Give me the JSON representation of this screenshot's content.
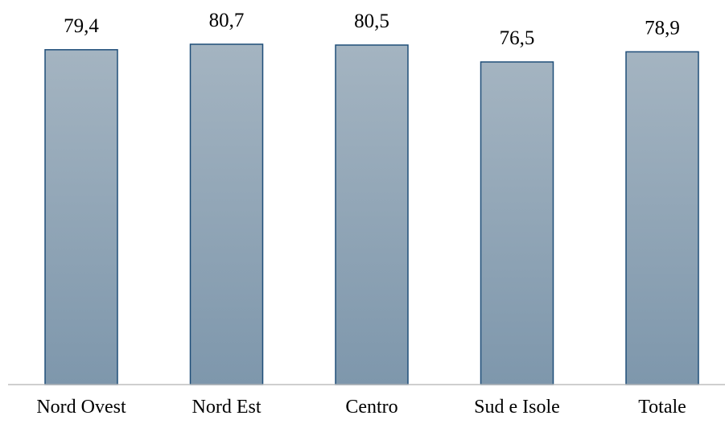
{
  "colors": {
    "bar_top": "#a4b4c1",
    "bar_bottom": "#7e97ac",
    "bar_stroke": "#1f4e79",
    "axis": "#bfbfbf",
    "text": "#000000"
  },
  "chart_data": {
    "type": "bar",
    "categories": [
      "Nord Ovest",
      "Nord Est",
      "Centro",
      "Sud e Isole",
      "Totale"
    ],
    "values": [
      79.4,
      80.7,
      80.5,
      76.5,
      78.9
    ],
    "data_labels": [
      "79,4",
      "80,7",
      "80,5",
      "76,5",
      "78,9"
    ],
    "title": "",
    "xlabel": "",
    "ylabel": "",
    "ylim": [
      0,
      80.7
    ],
    "grid": false,
    "legend": "none"
  }
}
